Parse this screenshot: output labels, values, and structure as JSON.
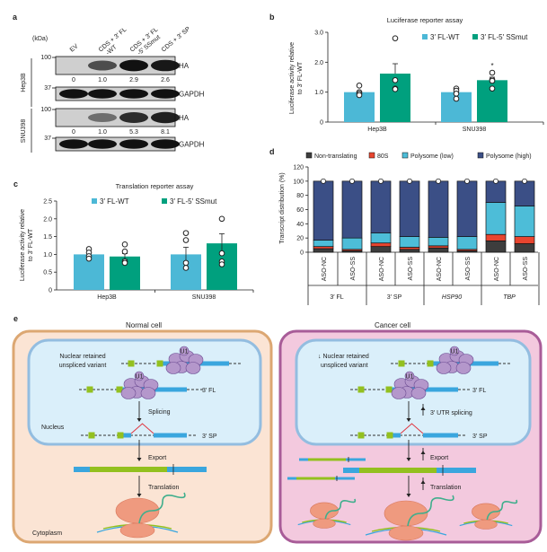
{
  "panel_a": {
    "label": "a",
    "kda": "(kDa)",
    "lanes": [
      "EV",
      "CDS + 3′ FL -WT",
      "CDS + 3′ FL -5′ SSmut",
      "CDS + 3′ SP"
    ],
    "lane_lines": [
      [
        "EV"
      ],
      [
        "CDS + 3′ FL",
        "-WT"
      ],
      [
        "CDS + 3′ FL",
        "-5′ SSmut"
      ],
      [
        "CDS + 3′ SP"
      ]
    ],
    "cell_lines": [
      "Hep3B",
      "SNU398"
    ],
    "markers": [
      "100",
      "37"
    ],
    "bands": [
      "HA",
      "GAPDH"
    ],
    "quant": {
      "Hep3B": [
        "0",
        "1.0",
        "2.9",
        "2.6"
      ],
      "SNU398": [
        "0",
        "1.0",
        "5.3",
        "8.1"
      ]
    }
  },
  "chart_data": [
    {
      "panel": "b",
      "type": "bar",
      "title": "Luciferase reporter assay",
      "ylabel": [
        "Luciferase activity relative",
        "to 3′ FL-WT"
      ],
      "categories": [
        "Hep3B",
        "SNU398"
      ],
      "ylim": [
        0,
        3.0
      ],
      "yticks": [
        "0",
        "1.0",
        "2.0",
        "3.0"
      ],
      "series": [
        {
          "name": "3′ FL-WT",
          "color": "#4cb8d6",
          "values": [
            1.0,
            1.0
          ],
          "sem": [
            0,
            0
          ],
          "points": [
            [
              1.22,
              1.0,
              0.95,
              0.9
            ],
            [
              1.12,
              1.05,
              0.95,
              0.78
            ]
          ]
        },
        {
          "name": "3′ FL-5′ SSmut",
          "color": "#00a07e",
          "values": [
            1.62,
            1.4
          ],
          "sem": [
            0.33,
            0.1
          ],
          "points": [
            [
              2.8,
              1.4,
              1.12,
              1.1
            ],
            [
              1.65,
              1.42,
              1.38,
              1.12
            ]
          ]
        }
      ],
      "annotations": [
        {
          "category": "SNU398",
          "series": "3′ FL-5′ SSmut",
          "text": "*"
        }
      ],
      "legend": "top-right"
    },
    {
      "panel": "c",
      "type": "bar",
      "title": "Translation reporter assay",
      "ylabel": [
        "Luciferase activity relative",
        "to 3′ FL-WT"
      ],
      "categories": [
        "Hep3B",
        "SNU398"
      ],
      "ylim": [
        0,
        2.5
      ],
      "yticks": [
        "0",
        "0.5",
        "1.0",
        "1.5",
        "2.0",
        "2.5"
      ],
      "series": [
        {
          "name": "3′ FL-WT",
          "color": "#4cb8d6",
          "values": [
            1.0,
            1.0
          ],
          "sem": [
            0.05,
            0.2
          ],
          "points": [
            [
              1.15,
              1.05,
              0.95,
              0.88
            ],
            [
              1.6,
              1.4,
              0.76,
              0.62
            ]
          ]
        },
        {
          "name": "3′ FL-5′ SSmut",
          "color": "#00a07e",
          "values": [
            0.94,
            1.31
          ],
          "sem": [
            0.08,
            0.27
          ],
          "points": [
            [
              1.28,
              1.08,
              0.8,
              0.76
            ],
            [
              2.0,
              1.03,
              0.8,
              0.72
            ]
          ]
        }
      ],
      "legend": "top"
    },
    {
      "panel": "d",
      "type": "bar",
      "stacked": true,
      "ylabel": "Transcript distribution (%)",
      "ylim": [
        0,
        120
      ],
      "yticks": [
        "0",
        "20",
        "40",
        "60",
        "80",
        "100",
        "120"
      ],
      "categories": [
        "ASO-NC",
        "ASO-SS",
        "ASO-NC",
        "ASO-SS",
        "ASO-NC",
        "ASO-SS",
        "ASO-NC",
        "ASO-SS"
      ],
      "groups": [
        {
          "label": "3′ FL",
          "italic": false
        },
        {
          "label": "3′ SP",
          "italic": false
        },
        {
          "label": "HSP90",
          "italic": true
        },
        {
          "label": "TBP",
          "italic": true
        }
      ],
      "series": [
        {
          "name": "Non-translating",
          "color": "#3d3d3d",
          "values": [
            5,
            2,
            8,
            4,
            6,
            2,
            16,
            12
          ]
        },
        {
          "name": "80S",
          "color": "#e8452f",
          "values": [
            3,
            2,
            5,
            3,
            3,
            2,
            9,
            10
          ]
        },
        {
          "name": "Polysome (low)",
          "color": "#4dbdd8",
          "values": [
            9,
            16,
            14,
            15,
            12,
            18,
            45,
            43
          ]
        },
        {
          "name": "Polysome (high)",
          "color": "#3b4f86",
          "values": [
            83,
            80,
            73,
            78,
            79,
            78,
            30,
            35
          ]
        }
      ],
      "legend": "top"
    }
  ],
  "panel_e": {
    "label": "e",
    "normal": {
      "title": "Normal cell",
      "retained": [
        "Nuclear retained",
        "unspliced variant"
      ],
      "u1": "U1",
      "fl": "3′ FL",
      "sp": "3′ SP",
      "splicing": "Splicing",
      "nucleus": "Nucleus",
      "export": "Export",
      "translation": "Translation",
      "cytoplasm": "Cytoplasm"
    },
    "cancer": {
      "title": "Cancer cell",
      "retained": [
        "↓ Nuclear retained",
        "unspliced variant"
      ],
      "u1": "U1",
      "fl": "3′ FL",
      "sp": "3′ SP",
      "splicing": "3′ UTR splicing",
      "export": "Export",
      "translation": "Translation"
    },
    "colors": {
      "normal_cell": "#fbe4d4",
      "cancer_cell": "#f3c9de",
      "nucleus": "#daeffa",
      "cds": "#93c01f",
      "utr": "#3aa6de",
      "u1": "#b497cb",
      "ribosome": "#ef9a7f",
      "peptide": "#3fae8c",
      "intron_arc": "#e0303a"
    }
  }
}
